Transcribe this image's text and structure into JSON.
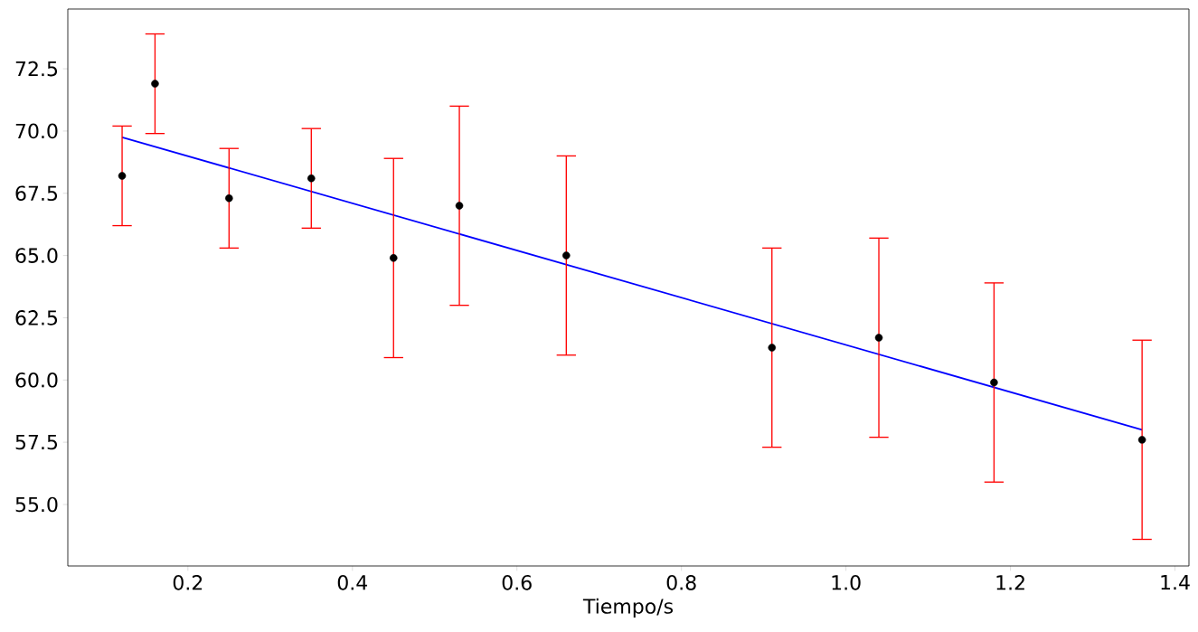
{
  "chart_data": {
    "type": "scatter",
    "xlabel": "Tiempo/s",
    "xlim": [
      0.054,
      1.417
    ],
    "ylim": [
      52.53,
      74.9
    ],
    "xticks": [
      0.2,
      0.4,
      0.6,
      0.8,
      {
        "value": 1.0,
        "label": "1.0"
      },
      1.2,
      1.4
    ],
    "yticks": [
      {
        "value": 55,
        "label": "55.0"
      },
      {
        "value": 57.5,
        "label": "57.5"
      },
      {
        "value": 60,
        "label": "60.0"
      },
      {
        "value": 62.5,
        "label": "62.5"
      },
      {
        "value": 65,
        "label": "65.0"
      },
      {
        "value": 67.5,
        "label": "67.5"
      },
      {
        "value": 70,
        "label": "70.0"
      },
      {
        "value": 72.5,
        "label": "72.5"
      }
    ],
    "series": [
      {
        "marker": "circle",
        "color": "#000000",
        "x": [
          0.12,
          0.16,
          0.25,
          0.35,
          0.45,
          0.53,
          0.66,
          0.91,
          1.04,
          1.18,
          1.36
        ],
        "values": [
          68.2,
          71.9,
          67.3,
          68.1,
          64.9,
          67.0,
          65.0,
          61.3,
          61.7,
          59.9,
          57.6
        ],
        "errors": [
          2,
          2,
          2,
          2,
          4,
          4,
          4,
          4,
          4,
          4,
          4
        ]
      },
      {
        "type": "line",
        "color": "#0000ff",
        "x": [
          0.12,
          1.36
        ],
        "values": [
          69.75,
          58.0
        ]
      }
    ]
  }
}
